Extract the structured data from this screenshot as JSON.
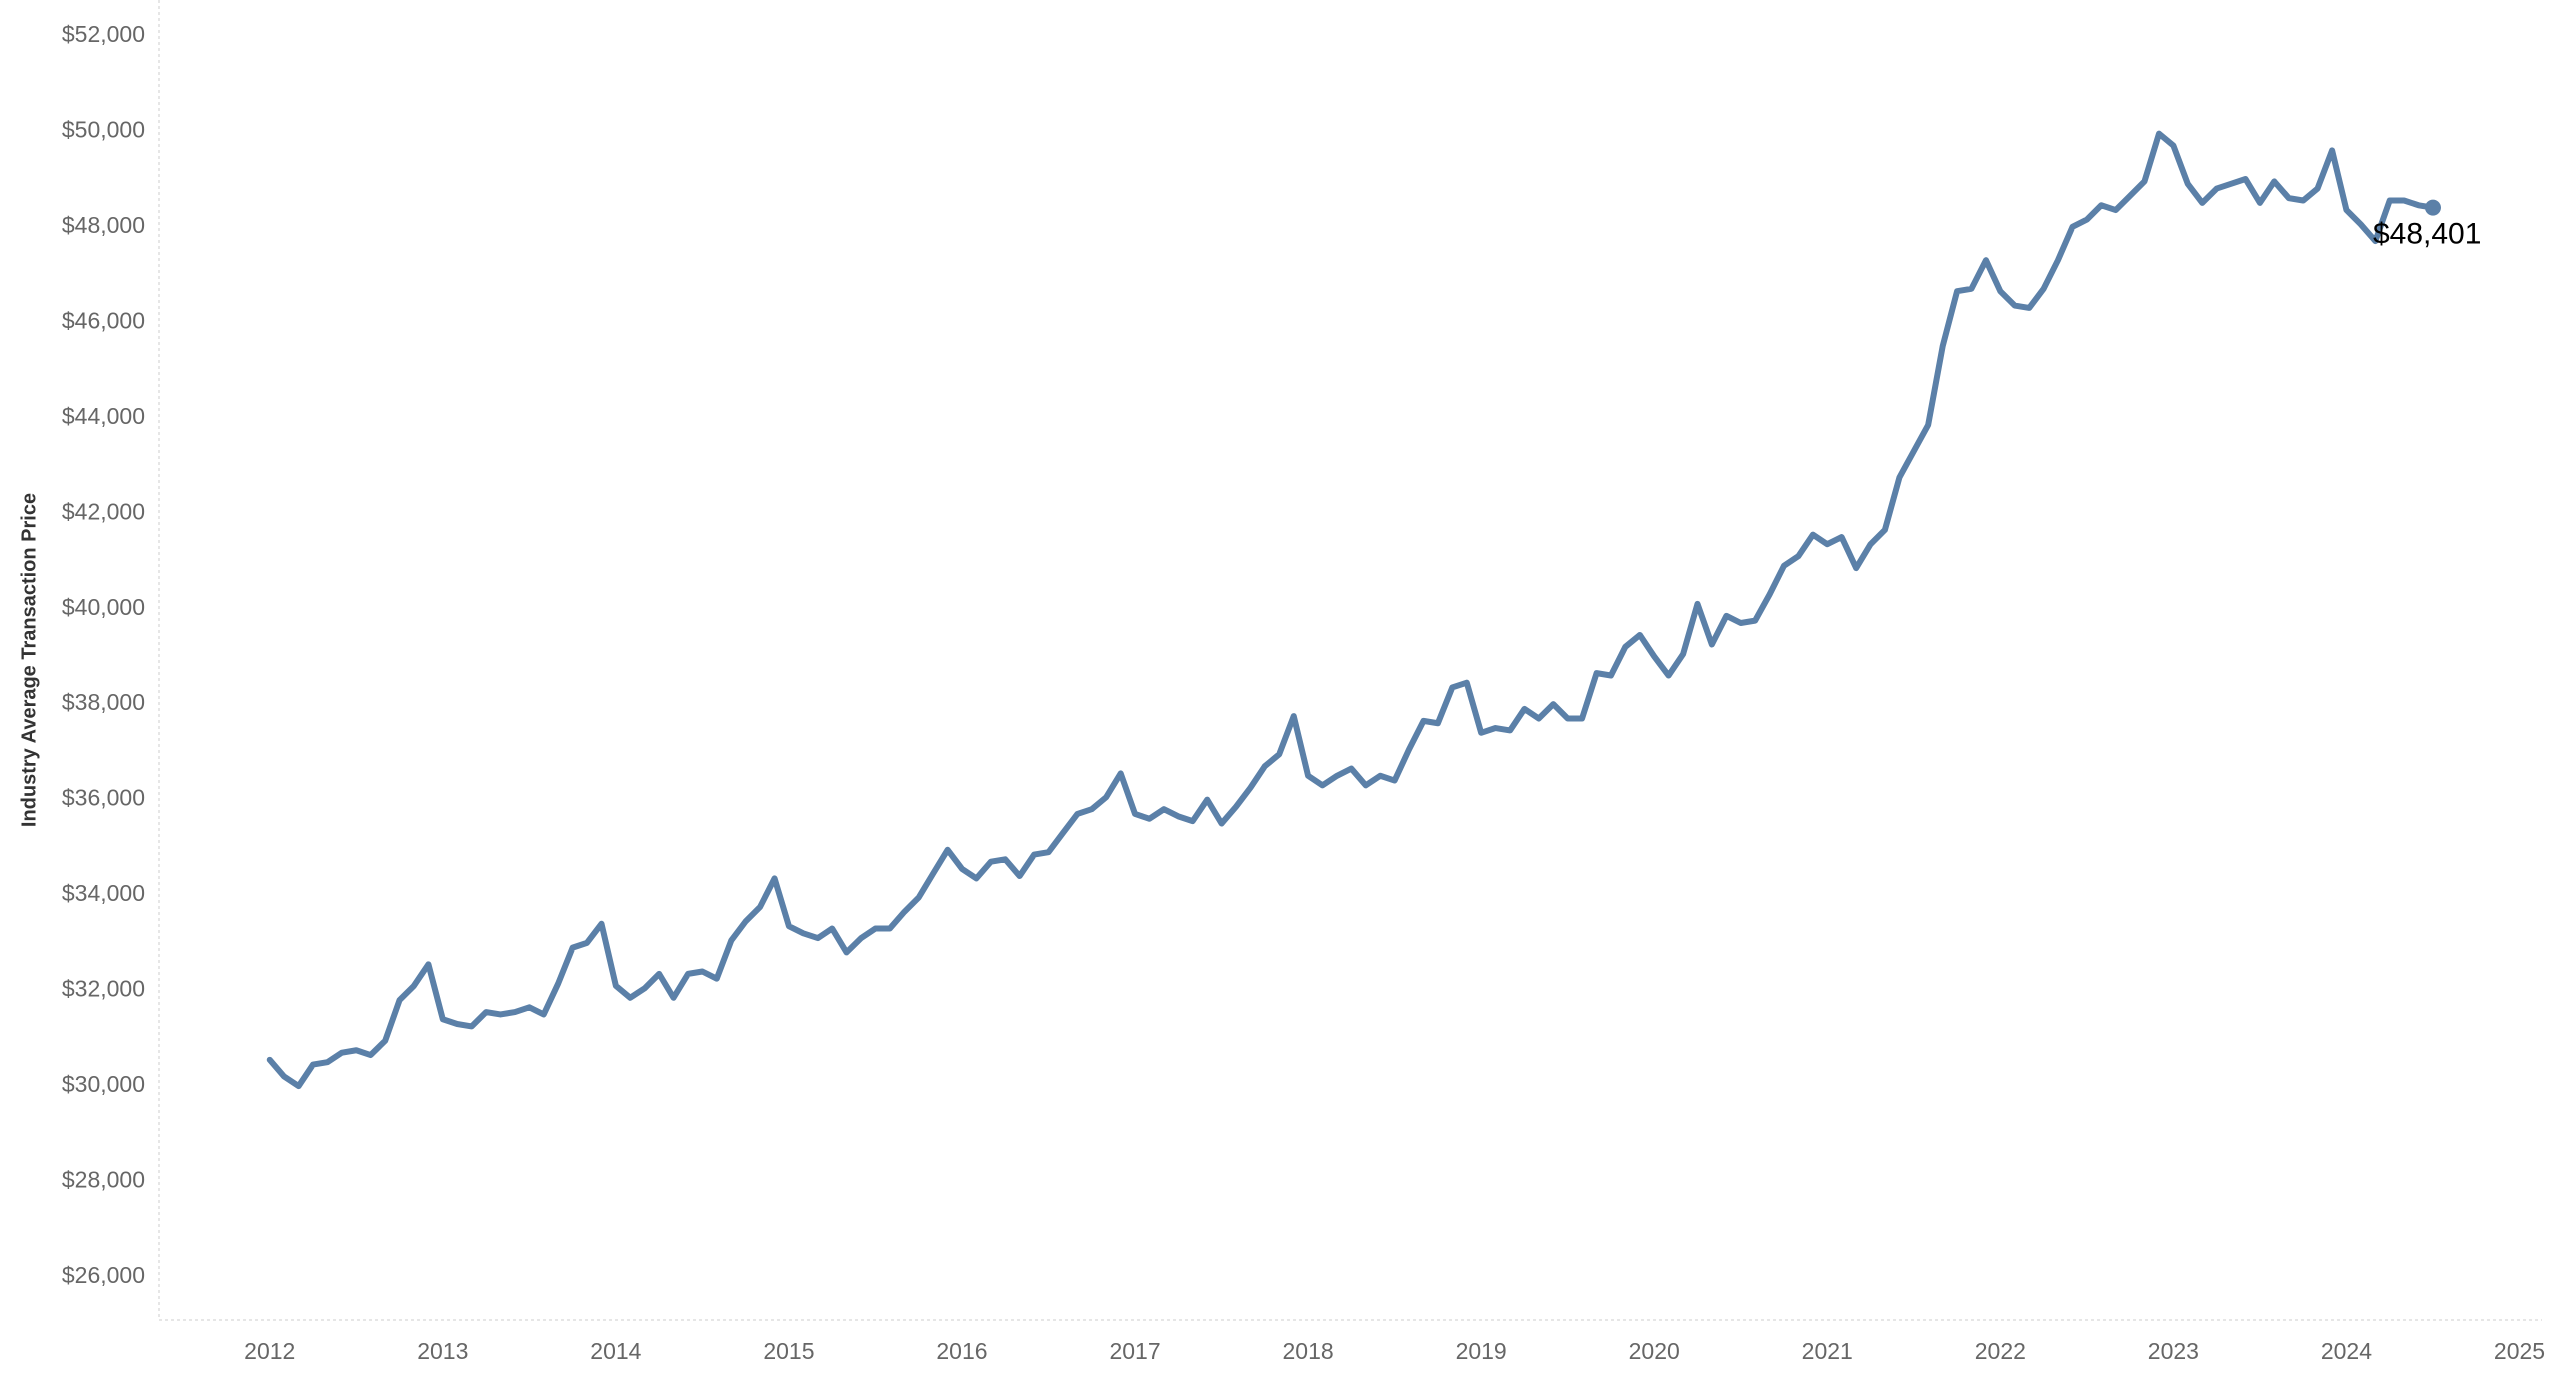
{
  "chart_data": {
    "type": "line",
    "y_label": "Industry Average Transaction Price",
    "x": [
      2012,
      2012.083,
      2012.167,
      2012.25,
      2012.333,
      2012.417,
      2012.5,
      2012.583,
      2012.667,
      2012.75,
      2012.833,
      2012.917,
      2013,
      2013.083,
      2013.167,
      2013.25,
      2013.333,
      2013.417,
      2013.5,
      2013.583,
      2013.667,
      2013.75,
      2013.833,
      2013.917,
      2014,
      2014.083,
      2014.167,
      2014.25,
      2014.333,
      2014.417,
      2014.5,
      2014.583,
      2014.667,
      2014.75,
      2014.833,
      2014.917,
      2015,
      2015.083,
      2015.167,
      2015.25,
      2015.333,
      2015.417,
      2015.5,
      2015.583,
      2015.667,
      2015.75,
      2015.833,
      2015.917,
      2016,
      2016.083,
      2016.167,
      2016.25,
      2016.333,
      2016.417,
      2016.5,
      2016.583,
      2016.667,
      2016.75,
      2016.833,
      2016.917,
      2017,
      2017.083,
      2017.167,
      2017.25,
      2017.333,
      2017.417,
      2017.5,
      2017.583,
      2017.667,
      2017.75,
      2017.833,
      2017.917,
      2018,
      2018.083,
      2018.167,
      2018.25,
      2018.333,
      2018.417,
      2018.5,
      2018.583,
      2018.667,
      2018.75,
      2018.833,
      2018.917,
      2019,
      2019.083,
      2019.167,
      2019.25,
      2019.333,
      2019.417,
      2019.5,
      2019.583,
      2019.667,
      2019.75,
      2019.833,
      2019.917,
      2020,
      2020.083,
      2020.167,
      2020.25,
      2020.333,
      2020.417,
      2020.5,
      2020.583,
      2020.667,
      2020.75,
      2020.833,
      2020.917,
      2021,
      2021.083,
      2021.167,
      2021.25,
      2021.333,
      2021.417,
      2021.5,
      2021.583,
      2021.667,
      2021.75,
      2021.833,
      2021.917,
      2022,
      2022.083,
      2022.167,
      2022.25,
      2022.333,
      2022.417,
      2022.5,
      2022.583,
      2022.667,
      2022.75,
      2022.833,
      2022.917,
      2023,
      2023.083,
      2023.167,
      2023.25,
      2023.333,
      2023.417,
      2023.5,
      2023.583,
      2023.667,
      2023.75,
      2023.833,
      2023.917,
      2024,
      2024.083,
      2024.167,
      2024.25,
      2024.333,
      2024.417,
      2024.5
    ],
    "series": [
      {
        "color": "#5b80a8",
        "values": [
          30550,
          30200,
          30000,
          30450,
          30500,
          30700,
          30750,
          30650,
          30950,
          31800,
          32100,
          32550,
          31400,
          31300,
          31250,
          31550,
          31500,
          31550,
          31650,
          31500,
          32150,
          32900,
          33000,
          33400,
          32100,
          31850,
          32050,
          32350,
          31850,
          32350,
          32400,
          32250,
          33050,
          33450,
          33750,
          34350,
          33350,
          33200,
          33100,
          33300,
          32800,
          33100,
          33300,
          33300,
          33650,
          33950,
          34450,
          34950,
          34550,
          34350,
          34700,
          34750,
          34400,
          34850,
          34900,
          35300,
          35700,
          35800,
          36050,
          36550,
          35700,
          35600,
          35800,
          35650,
          35550,
          36000,
          35500,
          35850,
          36250,
          36700,
          36950,
          37750,
          36500,
          36300,
          36500,
          36650,
          36300,
          36500,
          36400,
          37050,
          37650,
          37600,
          38350,
          38450,
          37400,
          37500,
          37450,
          37900,
          37700,
          38000,
          37700,
          37700,
          38650,
          38600,
          39200,
          39450,
          39000,
          38600,
          39050,
          40100,
          39250,
          39850,
          39700,
          39750,
          40300,
          40900,
          41100,
          41550,
          41350,
          41500,
          40850,
          41350,
          41650,
          42750,
          43300,
          43850,
          45500,
          46650,
          46700,
          47300,
          46650,
          46350,
          46300,
          46700,
          47300,
          48000,
          48150,
          48450,
          48350,
          48650,
          48950,
          49950,
          49700,
          48900,
          48500,
          48800,
          48900,
          49000,
          48500,
          48950,
          48600,
          48550,
          48800,
          49600,
          48350,
          48050,
          47700,
          48550,
          48550,
          48450,
          48401
        ]
      }
    ],
    "annotations": [
      {
        "text": "$48,401",
        "x": 2024.5,
        "value": 48401
      }
    ],
    "xlim": [
      2011.36,
      2025.13
    ],
    "ylim": [
      25100,
      52750
    ],
    "xticks": [
      2012,
      2013,
      2014,
      2015,
      2016,
      2017,
      2018,
      2019,
      2020,
      2021,
      2022,
      2023,
      2024,
      2025
    ],
    "yticks": [
      {
        "value": 26000,
        "label": "$26,000"
      },
      {
        "value": 28000,
        "label": "$28,000"
      },
      {
        "value": 30000,
        "label": "$30,000"
      },
      {
        "value": 32000,
        "label": "$32,000"
      },
      {
        "value": 34000,
        "label": "$34,000"
      },
      {
        "value": 36000,
        "label": "$36,000"
      },
      {
        "value": 38000,
        "label": "$38,000"
      },
      {
        "value": 40000,
        "label": "$40,000"
      },
      {
        "value": 42000,
        "label": "$42,000"
      },
      {
        "value": 44000,
        "label": "$44,000"
      },
      {
        "value": 46000,
        "label": "$46,000"
      },
      {
        "value": 48000,
        "label": "$48,000"
      },
      {
        "value": 50000,
        "label": "$50,000"
      },
      {
        "value": 52000,
        "label": "$52,000"
      }
    ],
    "grid": false
  }
}
